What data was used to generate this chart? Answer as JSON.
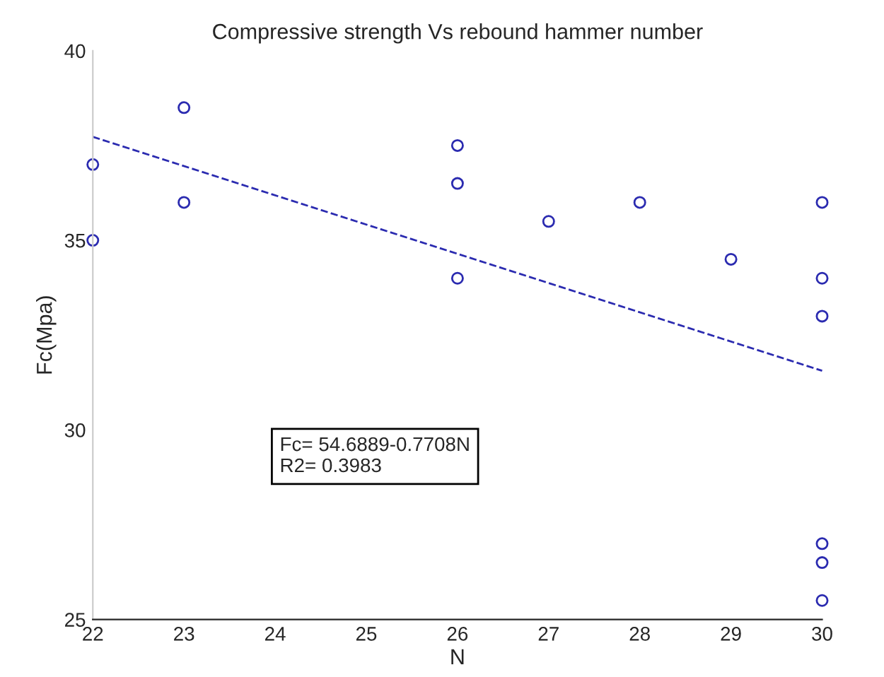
{
  "chart_data": {
    "type": "scatter",
    "title": "Compressive strength Vs rebound hammer number",
    "xlabel": "N",
    "ylabel": "Fc(Mpa)",
    "series": [
      {
        "color": "#2b2bb0",
        "marker": "circle",
        "x": [
          22,
          22,
          23,
          23,
          26,
          26,
          26,
          27,
          28,
          29,
          30,
          30,
          30,
          30,
          30,
          30
        ],
        "values": [
          37,
          35,
          38.5,
          36,
          37.5,
          36.5,
          34,
          35.5,
          36,
          34.5,
          36,
          34,
          33,
          27,
          26.5,
          25.5
        ]
      },
      {
        "type": "line",
        "color": "#2b2bb0",
        "marker": "none",
        "line_style": "dashed",
        "x": [
          22,
          30
        ],
        "values": [
          37.73,
          31.56
        ]
      }
    ],
    "annotations": [
      "Fc= 54.6889-0.7708N\nR2= 0.3983"
    ],
    "xlim": [
      22,
      30
    ],
    "xticks": [
      22,
      23,
      24,
      25,
      26,
      27,
      28,
      29,
      30
    ],
    "ylim": [
      25,
      40
    ],
    "yticks": [
      25,
      30,
      35,
      40
    ],
    "grid": false,
    "legend": false
  }
}
